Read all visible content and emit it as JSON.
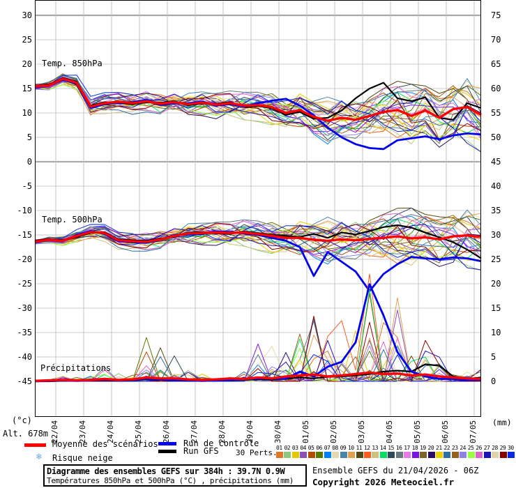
{
  "chart": {
    "alt_label": "Alt. 678m",
    "unit_left": "(°c)",
    "unit_right": "(mm)",
    "panel_labels": {
      "t850": "Temp. 850hPa",
      "t500": "Temp. 500hPa",
      "precip": "Précipitations"
    },
    "left_axis_ticks": [
      "30",
      "25",
      "20",
      "15",
      "10",
      "5",
      "0",
      "-5",
      "-10",
      "-15",
      "-20",
      "-25",
      "-30",
      "-35",
      "-40",
      "-45"
    ],
    "right_axis_ticks": [
      "75",
      "70",
      "65",
      "60",
      "55",
      "50",
      "45",
      "40",
      "35",
      "30",
      "25",
      "20",
      "15",
      "10",
      "5",
      "0"
    ],
    "date_labels": [
      "22/04",
      "23/04",
      "24/04",
      "25/04",
      "26/04",
      "27/04",
      "28/04",
      "29/04",
      "30/04",
      "01/05",
      "02/05",
      "03/05",
      "04/05",
      "05/05",
      "06/05",
      "07/05"
    ]
  },
  "legend": {
    "mean_label": "Moyenne des scénarios",
    "control_label": "Run de contrôle",
    "gfs_label": "Run GFS",
    "perts_label": "30 Perts.",
    "snow_label": "Risque neige",
    "snow_icon": "❄",
    "mean_color": "#ff0000",
    "control_color": "#0000ee",
    "gfs_color": "#000000",
    "pert_numbers": [
      "01",
      "02",
      "03",
      "04",
      "05",
      "06",
      "07",
      "08",
      "09",
      "10",
      "11",
      "12",
      "13",
      "14",
      "15",
      "16",
      "17",
      "18",
      "19",
      "20",
      "21",
      "22",
      "23",
      "24",
      "25",
      "26",
      "27",
      "28",
      "29",
      "30"
    ],
    "pert_colors": [
      "#e07628",
      "#8cc878",
      "#e6c800",
      "#8a50b4",
      "#b44a00",
      "#5a7800",
      "#0080ff",
      "#e3d9b0",
      "#4886a8",
      "#e0a050",
      "#564a14",
      "#f85c20",
      "#cfc080",
      "#00e060",
      "#2e4a56",
      "#64787e",
      "#e878e8",
      "#7814e6",
      "#7a6428",
      "#2a0a64",
      "#e8d200",
      "#2e6ea0",
      "#96601e",
      "#8c82e8",
      "#96ff3c",
      "#dc64c8",
      "#1e14b4",
      "#e0d2aa",
      "#8c0000",
      "#0a28dc"
    ]
  },
  "footer": {
    "title": "Diagramme des ensembles GEFS sur 384h : 39.7N 0.9W",
    "subtitle": "Températures 850hPa et 500hPa (°C) , précipitations (mm)",
    "run_info": "Ensemble GEFS du 21/04/2026 - 06Z",
    "copyright": "Copyright 2026 Meteociel.fr"
  },
  "chart_data": {
    "type": "line",
    "title": "Diagramme des ensembles GEFS sur 384h : 39.7N 0.9W",
    "x_start": "21/04 06Z",
    "x_end": "07/05 06Z",
    "x_step_hours": 12,
    "n_points": 33,
    "temp_axis_range": [
      -45,
      30
    ],
    "temp_tick_step": 5,
    "precip_axis_range": [
      0,
      80
    ],
    "grid": true,
    "legend_position": "bottom",
    "members_count": 30,
    "member_seed": 20260421,
    "panels": {
      "t850": {
        "label": "Temp. 850hPa",
        "unit": "°C",
        "mean": [
          15.4,
          15.6,
          17.0,
          16.2,
          11.3,
          12.0,
          12.3,
          12.0,
          12.4,
          11.9,
          12.2,
          11.8,
          12.1,
          11.7,
          12.0,
          11.5,
          11.6,
          11.2,
          10.0,
          10.6,
          9.2,
          8.4,
          9.0,
          8.6,
          9.4,
          10.2,
          10.6,
          9.4,
          10.5,
          9.0,
          10.8,
          11.2,
          9.6
        ],
        "control": [
          15.2,
          15.5,
          16.8,
          16.0,
          11.0,
          11.8,
          12.1,
          12.2,
          12.6,
          11.7,
          12.0,
          12.0,
          12.3,
          11.5,
          11.8,
          11.3,
          12.0,
          12.5,
          12.9,
          11.5,
          9.5,
          7.0,
          5.0,
          3.6,
          2.8,
          2.6,
          4.4,
          4.8,
          5.2,
          4.6,
          5.4,
          5.8,
          5.6
        ],
        "gfs": [
          15.5,
          15.7,
          17.2,
          16.4,
          11.5,
          12.2,
          12.0,
          11.8,
          12.2,
          12.1,
          12.4,
          11.6,
          11.9,
          11.9,
          12.2,
          11.2,
          11.4,
          11.0,
          9.6,
          10.2,
          8.8,
          9.0,
          10.5,
          13.0,
          15.0,
          16.2,
          13.0,
          12.4,
          13.2,
          9.0,
          8.6,
          12.0,
          11.0
        ],
        "spread": [
          0.5,
          0.8,
          1.0,
          1.2,
          1.6,
          1.6,
          1.6,
          1.7,
          1.8,
          1.9,
          2.0,
          2.1,
          2.2,
          2.3,
          2.4,
          2.5,
          2.6,
          2.8,
          3.0,
          3.2,
          3.4,
          3.6,
          3.8,
          4.0,
          4.2,
          4.4,
          4.6,
          4.8,
          5.0,
          5.2,
          5.4,
          5.6,
          5.8
        ],
        "clamp": [
          2.0,
          19.0
        ]
      },
      "t500": {
        "label": "Temp. 500hPa",
        "unit": "°C",
        "mean": [
          -16.4,
          -16.0,
          -16.2,
          -15.2,
          -14.4,
          -14.6,
          -16.1,
          -16.3,
          -16.4,
          -15.9,
          -15.2,
          -14.7,
          -14.6,
          -14.5,
          -14.6,
          -14.5,
          -14.8,
          -15.2,
          -15.6,
          -15.6,
          -16.0,
          -16.2,
          -15.9,
          -16.1,
          -15.8,
          -15.6,
          -15.3,
          -15.7,
          -15.5,
          -15.9,
          -15.3,
          -15.1,
          -15.4
        ],
        "control": [
          -16.5,
          -16.1,
          -16.3,
          -15.0,
          -14.2,
          -14.8,
          -16.3,
          -16.5,
          -16.6,
          -16.0,
          -15.0,
          -14.9,
          -14.8,
          -14.3,
          -14.4,
          -14.7,
          -15.0,
          -15.6,
          -16.2,
          -17.5,
          -23.4,
          -18.5,
          -20.5,
          -22.5,
          -26.5,
          -23.0,
          -21.0,
          -19.5,
          -19.8,
          -20.0,
          -19.6,
          -19.8,
          -20.4
        ],
        "gfs": [
          -16.3,
          -15.9,
          -16.0,
          -15.4,
          -14.6,
          -14.4,
          -15.9,
          -16.1,
          -16.2,
          -15.7,
          -15.4,
          -14.5,
          -14.4,
          -14.7,
          -14.8,
          -14.3,
          -14.6,
          -15.0,
          -15.2,
          -15.4,
          -14.8,
          -15.6,
          -14.5,
          -14.9,
          -14.2,
          -13.4,
          -13.0,
          -13.5,
          -14.5,
          -15.5,
          -16.5,
          -18.0,
          -19.8
        ],
        "spread": [
          0.4,
          0.6,
          0.8,
          1.0,
          1.2,
          1.3,
          1.4,
          1.5,
          1.6,
          1.7,
          1.8,
          1.9,
          2.0,
          2.1,
          2.2,
          2.4,
          2.6,
          2.8,
          3.0,
          3.2,
          3.4,
          3.6,
          3.8,
          4.0,
          4.2,
          4.4,
          4.5,
          4.6,
          4.7,
          4.8,
          4.9,
          5.0,
          5.1
        ],
        "clamp": [
          -27.5,
          -9.0
        ]
      },
      "precip": {
        "label": "Précipitations",
        "unit": "mm",
        "mean": [
          0.1,
          0.2,
          0.3,
          0.2,
          0.3,
          0.5,
          0.3,
          0.4,
          0.8,
          0.6,
          0.6,
          0.4,
          0.3,
          0.4,
          0.6,
          0.5,
          0.8,
          0.6,
          1.0,
          1.2,
          1.4,
          1.0,
          1.2,
          1.5,
          1.8,
          1.5,
          1.6,
          1.2,
          1.4,
          1.0,
          0.8,
          0.6,
          0.5
        ],
        "control": [
          0,
          0.1,
          0.2,
          0.1,
          0.2,
          0.3,
          0.2,
          0.3,
          0.5,
          0.4,
          0.3,
          0.2,
          0.1,
          0.2,
          0.3,
          0.4,
          0.6,
          0.5,
          0.5,
          2.0,
          1.0,
          3.0,
          4.0,
          8.0,
          19.9,
          13.5,
          6.0,
          2.0,
          1.0,
          0.5,
          0.5,
          0.2,
          0.3
        ],
        "gfs": [
          0,
          0,
          0.1,
          0.1,
          0.2,
          0.2,
          0.1,
          0.2,
          0.4,
          0.3,
          0.2,
          0.1,
          0.1,
          0.2,
          0.2,
          0.3,
          0.4,
          0.3,
          0.5,
          0.8,
          0.6,
          0.9,
          1.0,
          1.2,
          1.5,
          2.0,
          2.2,
          2.0,
          3.5,
          3.2,
          1.0,
          0.5,
          0.8
        ],
        "amp": [
          0.3,
          0.8,
          1.5,
          1.0,
          1.2,
          4.5,
          2.0,
          3.5,
          8.5,
          7.8,
          5.5,
          2.5,
          1.5,
          1.0,
          1.5,
          2.5,
          9.5,
          7.5,
          9.0,
          14.5,
          12.5,
          12.0,
          12.0,
          14.0,
          20.0,
          15.0,
          18.0,
          12.0,
          8.0,
          7.5,
          5.0,
          3.0,
          2.5
        ],
        "clamp": [
          0,
          22.0
        ]
      }
    }
  }
}
